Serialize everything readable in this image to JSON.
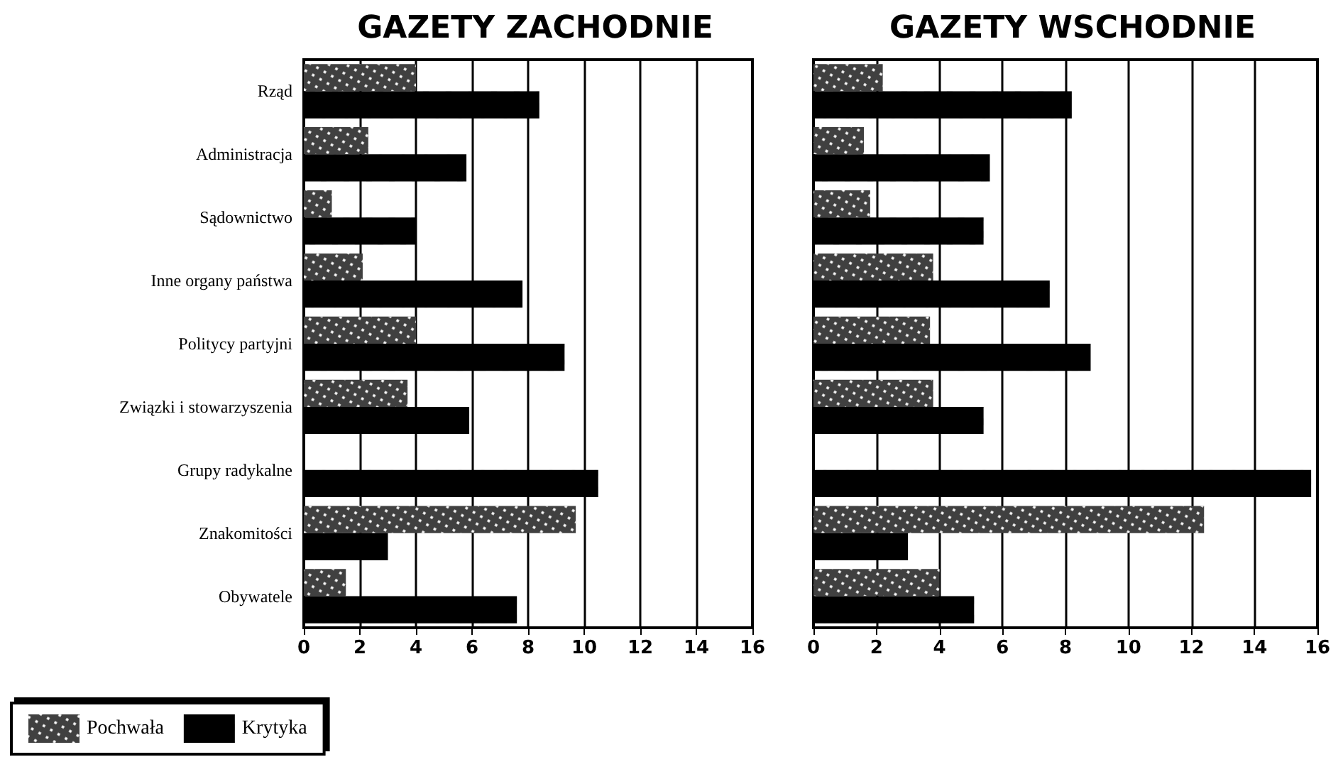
{
  "chart_data": [
    {
      "type": "bar",
      "orientation": "horizontal",
      "title": "GAZETY ZACHODNIE",
      "categories": [
        "Rząd",
        "Administracja",
        "Sądownictwo",
        "Inne organy państwa",
        "Politycy partyjni",
        "Związki i stowarzyszenia",
        "Grupy radykalne",
        "Znakomitości",
        "Obywatele"
      ],
      "series": [
        {
          "name": "Pochwała",
          "color": "#404040",
          "values": [
            4.0,
            2.3,
            1.0,
            2.1,
            4.0,
            3.7,
            0,
            9.7,
            1.5
          ]
        },
        {
          "name": "Krytyka",
          "color": "#000000",
          "values": [
            8.4,
            5.8,
            4.0,
            7.8,
            9.3,
            5.9,
            10.5,
            3.0,
            7.6
          ]
        }
      ],
      "xlim": [
        0,
        16
      ],
      "xticks": [
        0,
        2,
        4,
        6,
        8,
        10,
        12,
        14,
        16
      ],
      "grid": "x",
      "legend": "bottom left"
    },
    {
      "type": "bar",
      "orientation": "horizontal",
      "title": "GAZETY WSCHODNIE",
      "categories": [
        null,
        null,
        null,
        null,
        null,
        null,
        null,
        null,
        null
      ],
      "series": [
        {
          "name": "Pochwała",
          "color": "#404040",
          "values": [
            2.2,
            1.6,
            1.8,
            3.8,
            3.7,
            3.8,
            0,
            12.4,
            4.0
          ]
        },
        {
          "name": "Krytyka",
          "color": "#000000",
          "values": [
            8.2,
            5.6,
            5.4,
            7.5,
            8.8,
            5.4,
            15.8,
            3.0,
            5.1
          ]
        }
      ],
      "xlim": [
        0,
        16
      ],
      "xticks": [
        0,
        2,
        4,
        6,
        8,
        10,
        12,
        14,
        16
      ],
      "grid": "x",
      "tick_labels": "x"
    }
  ]
}
